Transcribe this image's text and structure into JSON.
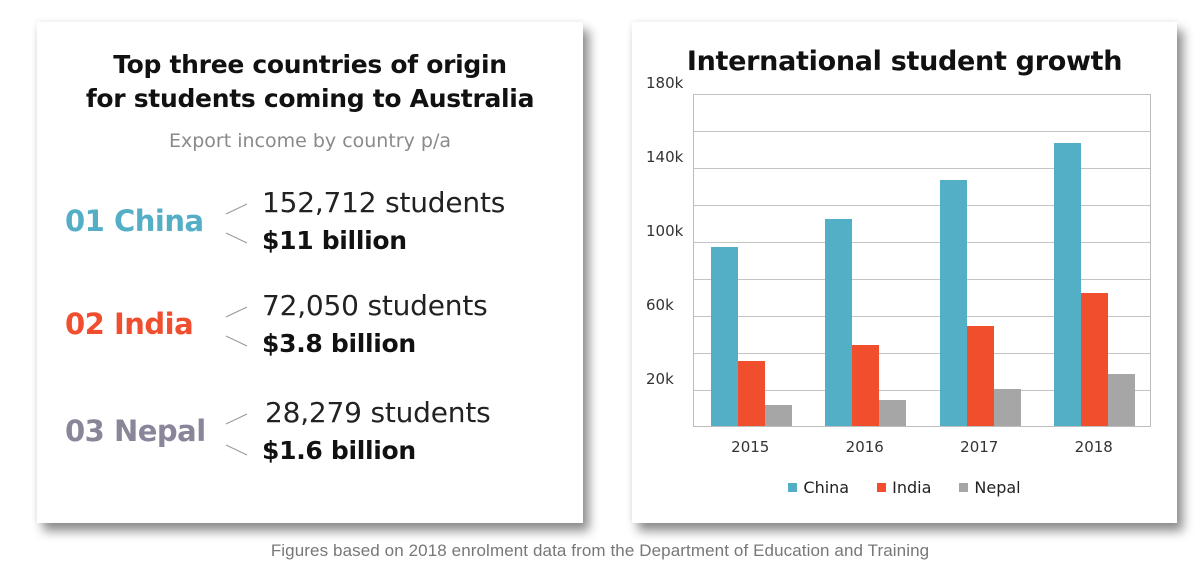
{
  "left_panel": {
    "title_line1": "Top three countries of origin",
    "title_line2": "for students coming to Australia",
    "subtitle": "Export income by country p/a",
    "countries": [
      {
        "rank_label": "01 China",
        "students": "152,712 students",
        "income": "$11 billion",
        "color": "#54AFC6"
      },
      {
        "rank_label": "02 India",
        "students": "72,050 students",
        "income": "$3.8 billion",
        "color": "#F04E2E"
      },
      {
        "rank_label": "03 Nepal",
        "students": "28,279 students",
        "income": "$1.6 billion",
        "color": "#8A8599"
      }
    ]
  },
  "right_panel": {
    "title": "International student growth"
  },
  "footer": "Figures based on 2018 enrolment data from the Department of Education and Training",
  "colors": {
    "china": "#52AFC5",
    "india": "#F04E2D",
    "nepal": "#A6A6A6"
  },
  "chart_data": {
    "type": "bar",
    "title": "International student growth",
    "xlabel": "",
    "ylabel": "",
    "categories": [
      "2015",
      "2016",
      "2017",
      "2018"
    ],
    "series": [
      {
        "name": "China",
        "color": "#52AFC5",
        "values": [
          97000,
          112000,
          133000,
          152712
        ]
      },
      {
        "name": "India",
        "color": "#F04E2D",
        "values": [
          35000,
          44000,
          54000,
          72050
        ]
      },
      {
        "name": "Nepal",
        "color": "#A6A6A6",
        "values": [
          11500,
          14000,
          20000,
          28279
        ]
      }
    ],
    "ylim": [
      0,
      180000
    ],
    "yticks": [
      0,
      20000,
      40000,
      60000,
      80000,
      100000,
      120000,
      140000,
      160000,
      180000
    ],
    "ytick_labels_shown": [
      "180k",
      "140k",
      "100k",
      "60k",
      "20k"
    ],
    "grid": true,
    "legend": {
      "position": "bottom",
      "entries": [
        "China",
        "India",
        "Nepal"
      ]
    }
  }
}
